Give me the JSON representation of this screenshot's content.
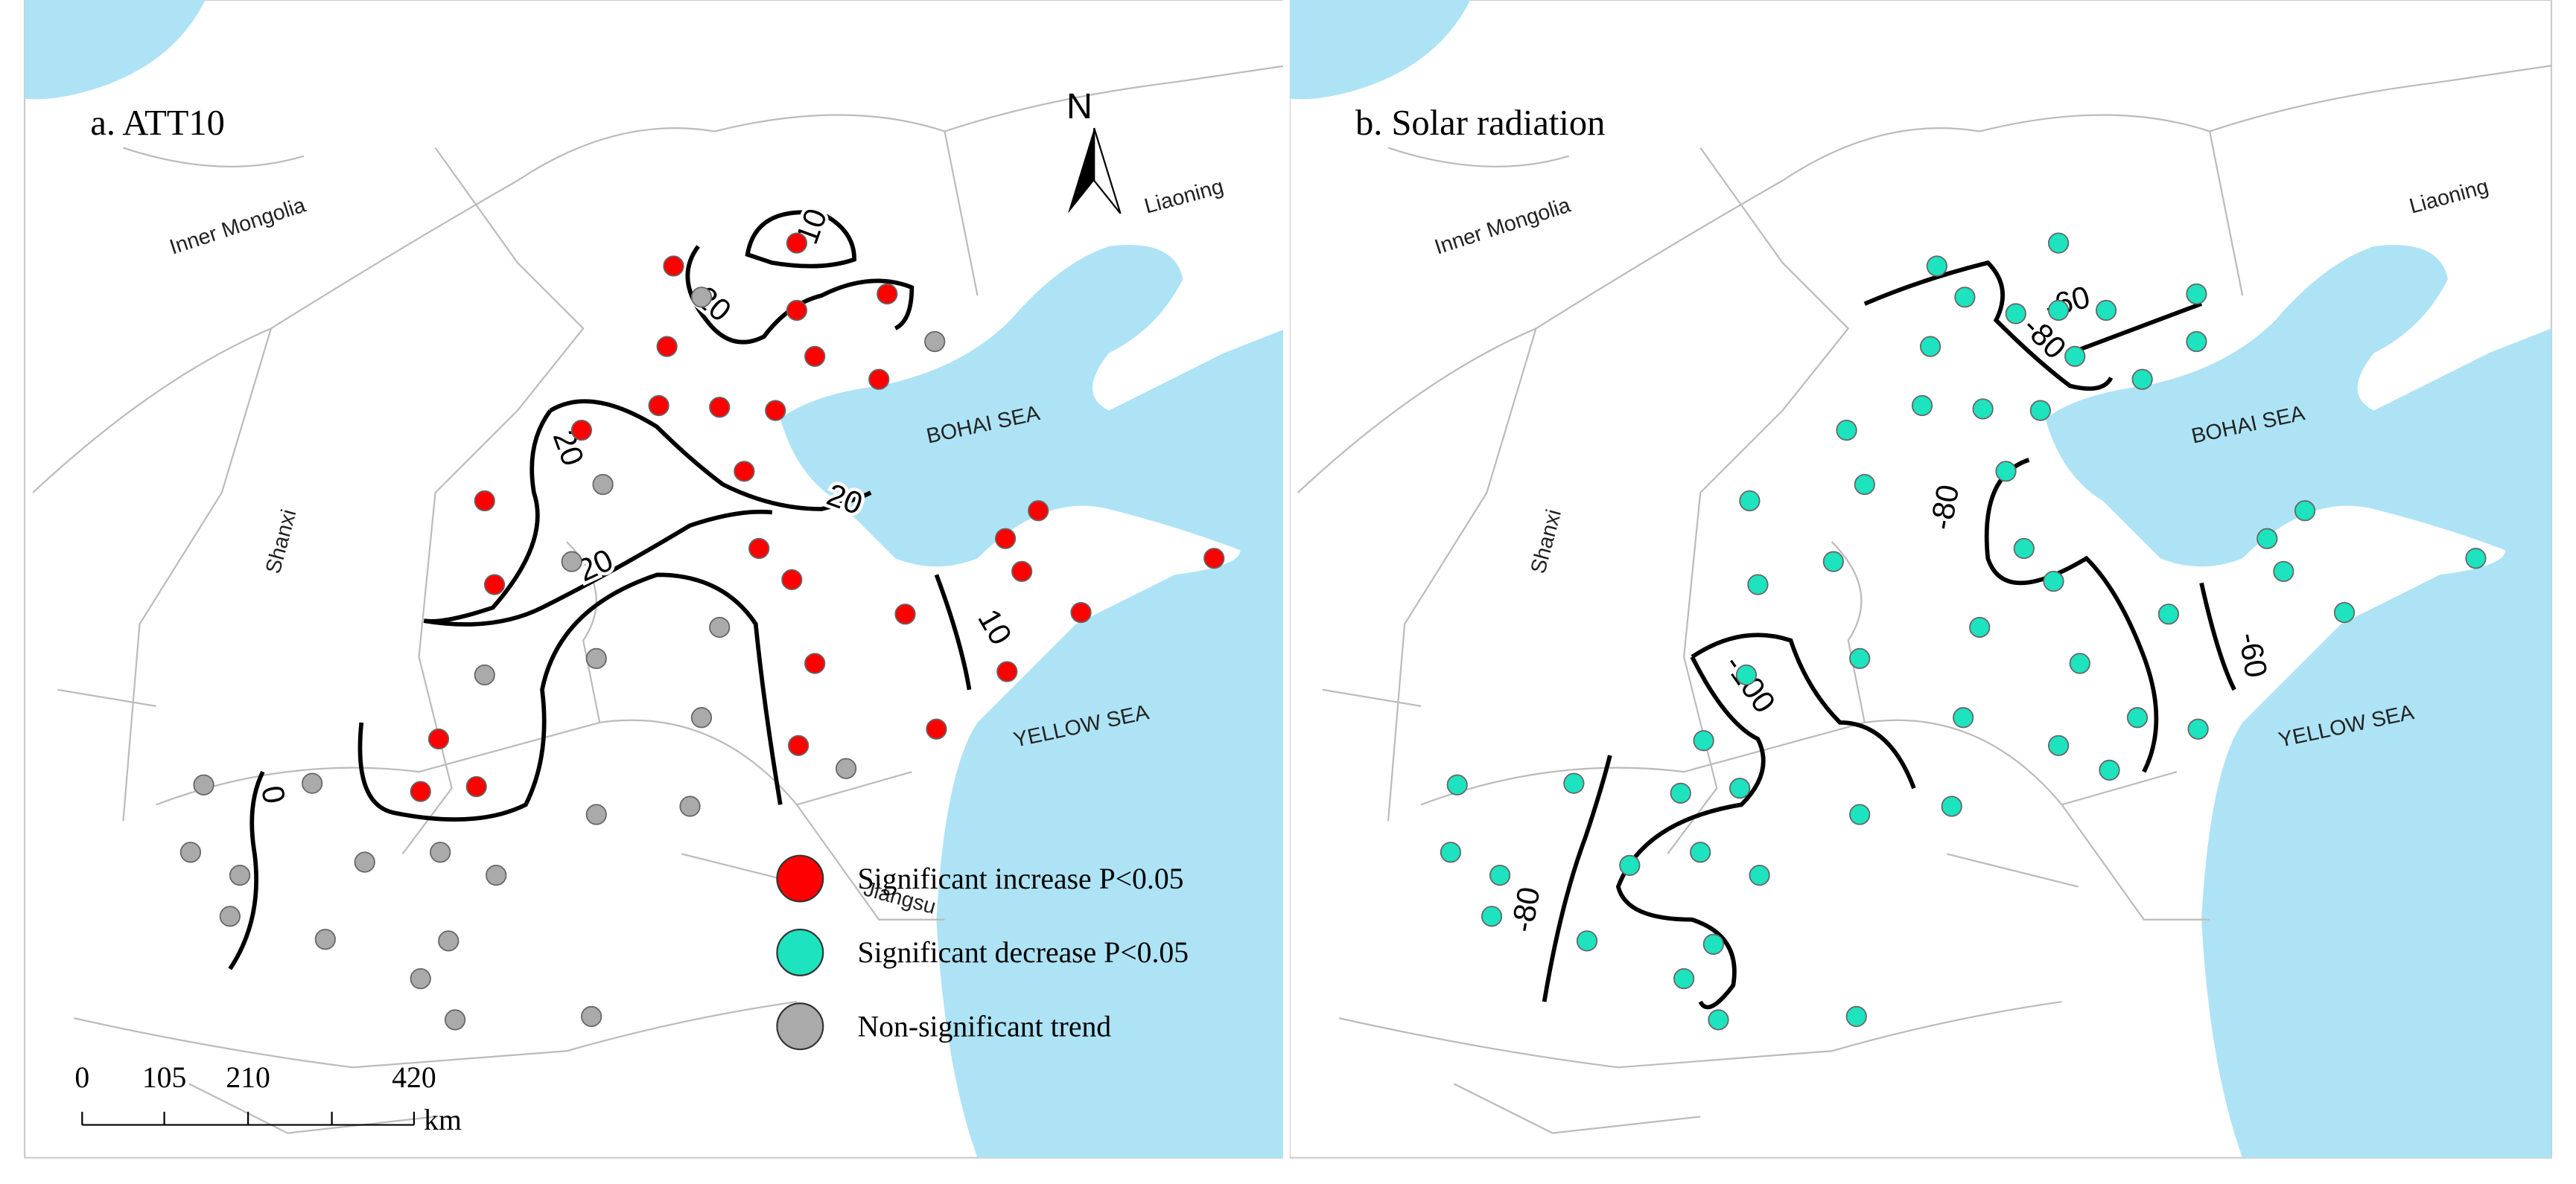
{
  "panels": [
    {
      "title": "a. ATT10",
      "regions": {
        "inner_mongolia": "Inner Mongolia",
        "liaoning": "Liaoning",
        "shanxi": "Shanxi",
        "bohai": "BOHAI SEA",
        "yellow": "YELLOW SEA",
        "jiangsu": "Jiangsu"
      },
      "contour_labels": [
        "10",
        "20",
        "20",
        "20",
        "10",
        "20",
        "0"
      ]
    },
    {
      "title": "b. Solar radiation",
      "regions": {
        "inner_mongolia": "Inner Mongolia",
        "liaoning": "Liaoning",
        "shanxi": "Shanxi",
        "bohai": "BOHAI SEA",
        "yellow": "YELLOW SEA"
      },
      "contour_labels": [
        "-60",
        "-80",
        "-80",
        "-60",
        "-100",
        "-80"
      ]
    }
  ],
  "legend": {
    "increase": "Significant increase P<0.05",
    "decrease": "Significant decrease P<0.05",
    "nonsig": "Non-significant trend"
  },
  "north": "N",
  "scale": {
    "ticks": [
      "0",
      "105",
      "210",
      "420"
    ],
    "unit": "km"
  }
}
